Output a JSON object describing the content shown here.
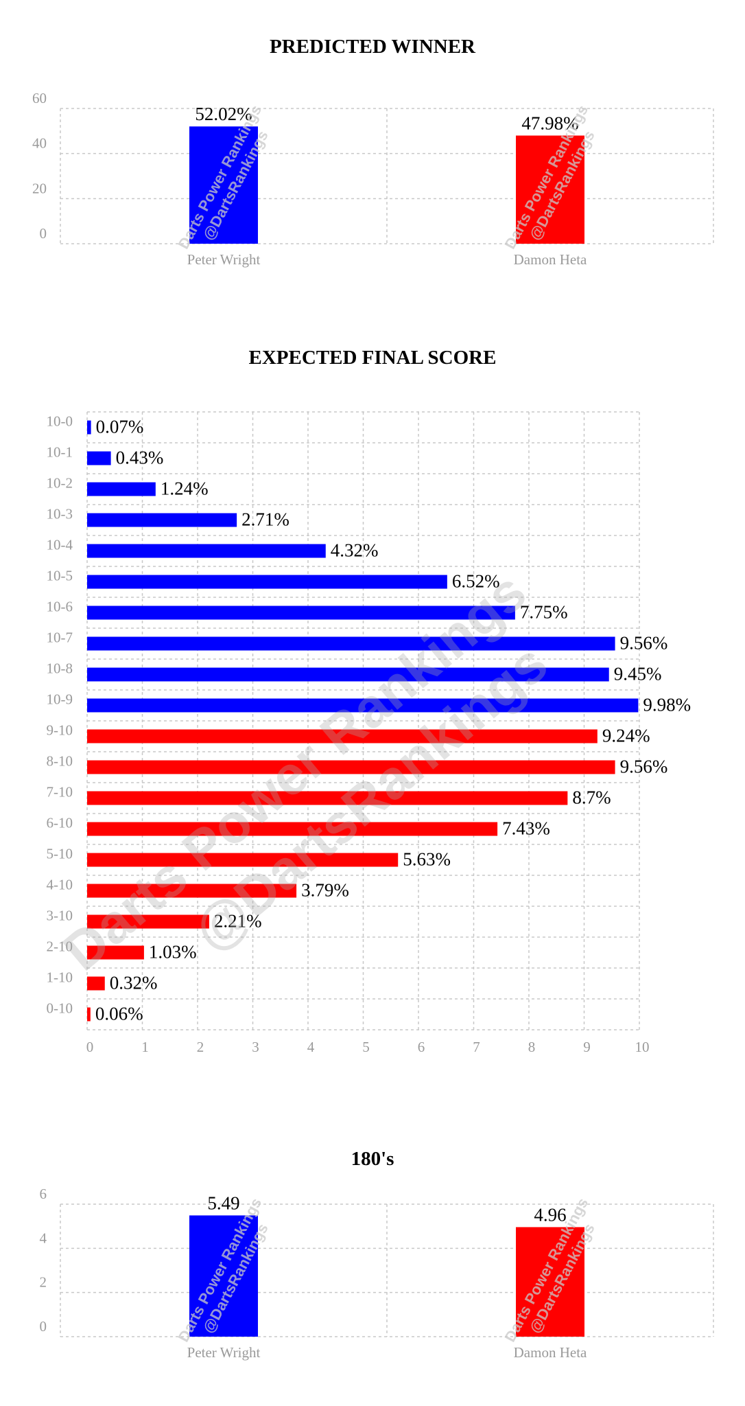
{
  "chart_data": [
    {
      "type": "bar",
      "title": "PREDICTED WINNER",
      "categories": [
        "Peter Wright",
        "Damon Heta"
      ],
      "values": [
        52.02,
        47.98
      ],
      "data_labels": [
        "52.02%",
        "47.98%"
      ],
      "colors": [
        "#0000ff",
        "#ff0000"
      ],
      "ylim": [
        0,
        60
      ],
      "yticks": [
        "0",
        "20",
        "40",
        "60"
      ],
      "grid": true,
      "watermark": [
        "Darts Power Rankings",
        "@DartsRankings"
      ]
    },
    {
      "type": "bar",
      "orientation": "horizontal",
      "title": "EXPECTED FINAL SCORE",
      "categories": [
        "10-0",
        "10-1",
        "10-2",
        "10-3",
        "10-4",
        "10-5",
        "10-6",
        "10-7",
        "10-8",
        "10-9",
        "9-10",
        "8-10",
        "7-10",
        "6-10",
        "5-10",
        "4-10",
        "3-10",
        "2-10",
        "1-10",
        "0-10"
      ],
      "values": [
        0.07,
        0.43,
        1.24,
        2.71,
        4.32,
        6.52,
        7.75,
        9.56,
        9.45,
        9.98,
        9.24,
        9.56,
        8.7,
        7.43,
        5.63,
        3.79,
        2.21,
        1.03,
        0.32,
        0.06
      ],
      "data_labels": [
        "0.07%",
        "0.43%",
        "1.24%",
        "2.71%",
        "4.32%",
        "6.52%",
        "7.75%",
        "9.56%",
        "9.45%",
        "9.98%",
        "9.24%",
        "9.56%",
        "8.7%",
        "7.43%",
        "5.63%",
        "3.79%",
        "2.21%",
        "1.03%",
        "0.32%",
        "0.06%"
      ],
      "colors": [
        "#0000ff",
        "#0000ff",
        "#0000ff",
        "#0000ff",
        "#0000ff",
        "#0000ff",
        "#0000ff",
        "#0000ff",
        "#0000ff",
        "#0000ff",
        "#ff0000",
        "#ff0000",
        "#ff0000",
        "#ff0000",
        "#ff0000",
        "#ff0000",
        "#ff0000",
        "#ff0000",
        "#ff0000",
        "#ff0000"
      ],
      "xlim": [
        0,
        10
      ],
      "xticks": [
        "0",
        "1",
        "2",
        "3",
        "4",
        "5",
        "6",
        "7",
        "8",
        "9",
        "10"
      ],
      "grid": true,
      "watermark": [
        "Darts Power Rankings",
        "@DartsRankings"
      ]
    },
    {
      "type": "bar",
      "title": "180's",
      "categories": [
        "Peter Wright",
        "Damon Heta"
      ],
      "values": [
        5.49,
        4.96
      ],
      "data_labels": [
        "5.49",
        "4.96"
      ],
      "colors": [
        "#0000ff",
        "#ff0000"
      ],
      "ylim": [
        0,
        6
      ],
      "yticks": [
        "0",
        "2",
        "4",
        "6"
      ],
      "grid": true,
      "watermark": [
        "Darts Power Rankings",
        "@DartsRankings"
      ]
    }
  ]
}
